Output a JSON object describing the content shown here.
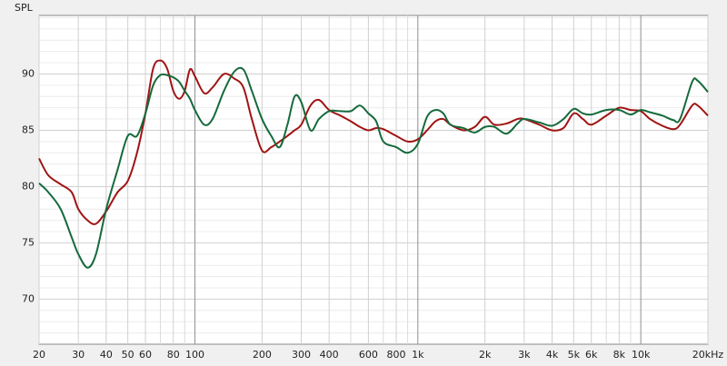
{
  "chart_data": {
    "type": "line",
    "ylabel": "SPL",
    "xscale": "log",
    "xlim": [
      20,
      20000
    ],
    "ylim": [
      66,
      95.2
    ],
    "xticks": [
      20,
      30,
      40,
      50,
      60,
      80,
      100,
      200,
      300,
      400,
      600,
      800,
      {
        "value": 1000,
        "label": "1k"
      },
      {
        "value": 2000,
        "label": "2k"
      },
      {
        "value": 3000,
        "label": "3k"
      },
      {
        "value": 4000,
        "label": "4k"
      },
      {
        "value": 5000,
        "label": "5k"
      },
      {
        "value": 6000,
        "label": "6k"
      },
      {
        "value": 8000,
        "label": "8k"
      },
      {
        "value": 10000,
        "label": "10k"
      },
      {
        "value": 20000,
        "label": "20kHz"
      }
    ],
    "x_minor_gridlines": [
      70,
      90,
      500,
      700,
      900,
      7000,
      9000
    ],
    "yticks": [
      70,
      75,
      80,
      85,
      90
    ],
    "y_minor_gridlines": [
      67,
      68,
      69,
      71,
      72,
      73,
      74,
      76,
      77,
      78,
      79,
      81,
      82,
      83,
      84,
      86,
      87,
      88,
      89,
      91,
      92,
      93,
      94,
      95
    ],
    "grid": true,
    "x": [
      20,
      22,
      25,
      28,
      30,
      33,
      36,
      40,
      45,
      50,
      55,
      60,
      65,
      70,
      75,
      80,
      85,
      90,
      95,
      100,
      110,
      120,
      135,
      150,
      165,
      180,
      200,
      220,
      240,
      260,
      280,
      300,
      330,
      360,
      400,
      450,
      500,
      550,
      600,
      650,
      700,
      800,
      900,
      1000,
      1100,
      1200,
      1300,
      1400,
      1600,
      1800,
      2000,
      2200,
      2500,
      2800,
      3000,
      3500,
      4000,
      4500,
      5000,
      5500,
      6000,
      7000,
      8000,
      9000,
      10000,
      11000,
      12500,
      14000,
      15000,
      17000,
      18000,
      20000
    ],
    "series": [
      {
        "color": "#a01414",
        "values": [
          82.5,
          81,
          80.2,
          79.5,
          78,
          77,
          76.7,
          77.8,
          79.5,
          80.5,
          83,
          86.5,
          90.5,
          91.2,
          90.5,
          88.5,
          87.8,
          88.5,
          90.4,
          89.8,
          88.3,
          88.8,
          90,
          89.6,
          88.8,
          86,
          83.2,
          83.5,
          84,
          84.5,
          85,
          85.5,
          87.2,
          87.7,
          86.8,
          86.3,
          85.8,
          85.3,
          85,
          85.2,
          85.1,
          84.5,
          84,
          84.2,
          85,
          85.8,
          86,
          85.5,
          85,
          85.3,
          86.2,
          85.5,
          85.6,
          86,
          86,
          85.5,
          85,
          85.2,
          86.5,
          86,
          85.5,
          86.3,
          87,
          86.8,
          86.7,
          86,
          85.4,
          85.1,
          85.5,
          87.2,
          87.2,
          86.3
        ]
      },
      {
        "color": "#156a3c",
        "values": [
          80.3,
          79.5,
          78,
          75.5,
          74,
          72.8,
          74,
          78,
          81.5,
          84.5,
          84.5,
          86.5,
          89,
          89.9,
          89.9,
          89.7,
          89.3,
          88.5,
          87.8,
          86.8,
          85.5,
          86,
          88.5,
          90.2,
          90.4,
          88.5,
          86,
          84.5,
          83.5,
          85.5,
          88,
          87.5,
          85,
          86,
          86.7,
          86.7,
          86.7,
          87.2,
          86.5,
          85.8,
          84,
          83.5,
          83,
          83.8,
          86.2,
          86.8,
          86.5,
          85.5,
          85.2,
          84.8,
          85.3,
          85.3,
          84.7,
          85.6,
          86,
          85.7,
          85.4,
          86,
          86.9,
          86.5,
          86.4,
          86.8,
          86.8,
          86.4,
          86.8,
          86.6,
          86.3,
          85.9,
          86,
          89.3,
          89.4,
          88.4
        ]
      }
    ]
  }
}
